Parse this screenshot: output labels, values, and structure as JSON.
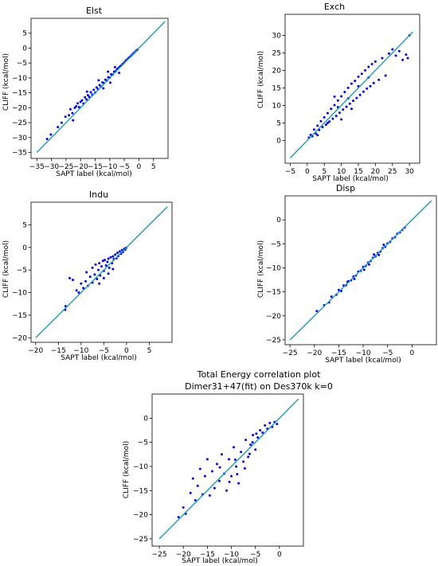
{
  "figure": {
    "point_color": "#0000ff",
    "line_color": "#1f9bb5"
  },
  "chart_data": [
    {
      "id": "elst",
      "type": "scatter",
      "title": "Elst",
      "xlabel": "SAPT label (kcal/mol)",
      "ylabel": "CLIFF (kcal/mol)",
      "xlim": [
        -37,
        10
      ],
      "ylim": [
        -37,
        10
      ],
      "xticks": [
        -35,
        -30,
        -25,
        -20,
        -15,
        -10,
        -5,
        0,
        5
      ],
      "yticks": [
        -35,
        -30,
        -25,
        -20,
        -15,
        -10,
        -5,
        0,
        5
      ],
      "xtick_labels": [
        "−35",
        "−30",
        "−25",
        "−20",
        "−15",
        "−10",
        "−5",
        "0",
        "5"
      ],
      "ytick_labels": [
        "−35",
        "−30",
        "−25",
        "−20",
        "−15",
        "−10",
        "−5",
        "0",
        "5"
      ],
      "grid": false,
      "reference_line": [
        [
          -35,
          -35
        ],
        [
          9,
          9
        ]
      ],
      "points": [
        [
          -31.5,
          -30.5
        ],
        [
          -30.2,
          -29.0
        ],
        [
          -27.8,
          -26.5
        ],
        [
          -26.5,
          -25.0
        ],
        [
          -25.2,
          -23.0
        ],
        [
          -24.0,
          -22.5
        ],
        [
          -23.5,
          -20.5
        ],
        [
          -22.8,
          -21.8
        ],
        [
          -22.0,
          -20.0
        ],
        [
          -21.5,
          -19.5
        ],
        [
          -21.0,
          -18.5
        ],
        [
          -20.5,
          -19.8
        ],
        [
          -20.0,
          -18.0
        ],
        [
          -19.5,
          -17.5
        ],
        [
          -19.0,
          -18.6
        ],
        [
          -18.5,
          -16.5
        ],
        [
          -18.0,
          -17.2
        ],
        [
          -17.5,
          -15.8
        ],
        [
          -17.0,
          -16.4
        ],
        [
          -16.5,
          -14.8
        ],
        [
          -16.0,
          -15.6
        ],
        [
          -15.5,
          -14.0
        ],
        [
          -15.0,
          -14.9
        ],
        [
          -14.5,
          -13.2
        ],
        [
          -14.0,
          -13.8
        ],
        [
          -13.5,
          -12.4
        ],
        [
          -13.0,
          -12.9
        ],
        [
          -12.5,
          -11.5
        ],
        [
          -12.0,
          -11.8
        ],
        [
          -11.5,
          -10.6
        ],
        [
          -11.0,
          -10.9
        ],
        [
          -10.5,
          -9.8
        ],
        [
          -10.0,
          -9.9
        ],
        [
          -9.5,
          -8.8
        ],
        [
          -9.0,
          -8.9
        ],
        [
          -8.5,
          -7.9
        ],
        [
          -8.0,
          -7.8
        ],
        [
          -7.5,
          -7.1
        ],
        [
          -7.0,
          -6.7
        ],
        [
          -6.5,
          -6.2
        ],
        [
          -6.0,
          -5.8
        ],
        [
          -5.5,
          -5.3
        ],
        [
          -5.0,
          -4.8
        ],
        [
          -4.5,
          -4.2
        ],
        [
          -4.0,
          -3.8
        ],
        [
          -3.5,
          -3.3
        ],
        [
          -3.0,
          -2.9
        ],
        [
          -2.5,
          -2.4
        ],
        [
          -2.0,
          -1.9
        ],
        [
          -1.5,
          -1.4
        ],
        [
          -1.0,
          -0.9
        ],
        [
          -0.5,
          -0.5
        ],
        [
          -13.8,
          -10.8
        ],
        [
          -12.2,
          -13.5
        ],
        [
          -9.8,
          -11.6
        ],
        [
          -8.2,
          -6.4
        ],
        [
          -6.8,
          -8.3
        ],
        [
          -17.8,
          -14.6
        ],
        [
          -22.6,
          -24.2
        ],
        [
          -10.6,
          -7.9
        ]
      ]
    },
    {
      "id": "exch",
      "type": "scatter",
      "title": "Exch",
      "xlabel": "SAPT label (kcal/mol)",
      "ylabel": "CLIFF (kcal/mol)",
      "xlim": [
        -6.5,
        33
      ],
      "ylim": [
        -6.5,
        36
      ],
      "xticks": [
        -5,
        0,
        5,
        10,
        15,
        20,
        25,
        30
      ],
      "yticks": [
        0,
        5,
        10,
        15,
        20,
        25,
        30
      ],
      "xtick_labels": [
        "−5",
        "0",
        "5",
        "10",
        "15",
        "20",
        "25",
        "30"
      ],
      "ytick_labels": [
        "0",
        "5",
        "10",
        "15",
        "20",
        "25",
        "30"
      ],
      "grid": false,
      "reference_line": [
        [
          -5,
          -5
        ],
        [
          31,
          31
        ]
      ],
      "points": [
        [
          0.5,
          0.8
        ],
        [
          1.0,
          1.6
        ],
        [
          1.5,
          1.2
        ],
        [
          2.0,
          3.1
        ],
        [
          2.5,
          2.0
        ],
        [
          3.0,
          4.2
        ],
        [
          3.5,
          3.0
        ],
        [
          4.0,
          5.5
        ],
        [
          4.5,
          3.8
        ],
        [
          5.0,
          6.6
        ],
        [
          5.5,
          4.5
        ],
        [
          6.0,
          7.8
        ],
        [
          6.5,
          5.4
        ],
        [
          7.0,
          9.0
        ],
        [
          7.5,
          6.2
        ],
        [
          8.0,
          10.1
        ],
        [
          8.5,
          7.0
        ],
        [
          9.0,
          11.4
        ],
        [
          9.5,
          7.9
        ],
        [
          10.0,
          12.6
        ],
        [
          10.5,
          8.8
        ],
        [
          11.0,
          13.8
        ],
        [
          11.5,
          9.6
        ],
        [
          12.0,
          15.0
        ],
        [
          12.5,
          10.5
        ],
        [
          13.0,
          16.2
        ],
        [
          13.5,
          11.3
        ],
        [
          14.0,
          17.0
        ],
        [
          14.5,
          12.1
        ],
        [
          15.0,
          18.2
        ],
        [
          15.5,
          13.0
        ],
        [
          16.0,
          19.0
        ],
        [
          16.5,
          13.9
        ],
        [
          17.0,
          20.0
        ],
        [
          17.5,
          14.8
        ],
        [
          18.0,
          21.0
        ],
        [
          18.5,
          15.5
        ],
        [
          19.0,
          21.8
        ],
        [
          19.5,
          16.4
        ],
        [
          20.0,
          22.5
        ],
        [
          21.0,
          17.3
        ],
        [
          22.0,
          23.5
        ],
        [
          23.0,
          18.5
        ],
        [
          24.0,
          24.8
        ],
        [
          25.0,
          26.0
        ],
        [
          26.0,
          24.2
        ],
        [
          27.0,
          25.5
        ],
        [
          28.0,
          23.0
        ],
        [
          29.0,
          24.5
        ],
        [
          30.0,
          30.0
        ],
        [
          29.5,
          23.5
        ],
        [
          3.0,
          1.5
        ],
        [
          6.0,
          5.0
        ],
        [
          9.0,
          9.5
        ],
        [
          12.0,
          12.0
        ],
        [
          15.0,
          15.5
        ],
        [
          18.0,
          18.0
        ],
        [
          10.0,
          6.0
        ],
        [
          8.0,
          12.5
        ],
        [
          13.0,
          9.0
        ]
      ]
    },
    {
      "id": "indu",
      "type": "scatter",
      "title": "Indu",
      "xlabel": "SAPT label (kcal/mol)",
      "ylabel": "CLIFF (kcal/mol)",
      "xlim": [
        -21,
        10
      ],
      "ylim": [
        -21,
        10
      ],
      "xticks": [
        -20,
        -15,
        -10,
        -5,
        0,
        5
      ],
      "yticks": [
        -20,
        -15,
        -10,
        -5,
        0,
        5
      ],
      "xtick_labels": [
        "−20",
        "−15",
        "−10",
        "−5",
        "0",
        "5"
      ],
      "ytick_labels": [
        "−20",
        "−15",
        "−10",
        "−5",
        "0",
        "5"
      ],
      "grid": false,
      "reference_line": [
        [
          -20,
          -20
        ],
        [
          9,
          9
        ]
      ],
      "points": [
        [
          -13.5,
          -13.8
        ],
        [
          -13.4,
          -13.0
        ],
        [
          -12.5,
          -6.8
        ],
        [
          -11.8,
          -7.2
        ],
        [
          -11.0,
          -9.5
        ],
        [
          -10.5,
          -10.0
        ],
        [
          -10.0,
          -8.0
        ],
        [
          -9.5,
          -9.0
        ],
        [
          -9.0,
          -7.5
        ],
        [
          -8.8,
          -5.5
        ],
        [
          -8.5,
          -8.5
        ],
        [
          -8.0,
          -6.5
        ],
        [
          -7.5,
          -7.8
        ],
        [
          -7.5,
          -4.5
        ],
        [
          -7.0,
          -6.0
        ],
        [
          -6.8,
          -3.8
        ],
        [
          -6.5,
          -7.0
        ],
        [
          -6.2,
          -5.0
        ],
        [
          -6.0,
          -3.5
        ],
        [
          -5.8,
          -6.2
        ],
        [
          -5.5,
          -4.2
        ],
        [
          -5.2,
          -3.0
        ],
        [
          -5.0,
          -5.2
        ],
        [
          -4.8,
          -2.8
        ],
        [
          -4.5,
          -4.0
        ],
        [
          -4.2,
          -3.2
        ],
        [
          -4.0,
          -2.5
        ],
        [
          -3.8,
          -4.5
        ],
        [
          -3.5,
          -2.2
        ],
        [
          -3.2,
          -3.5
        ],
        [
          -3.0,
          -2.0
        ],
        [
          -2.8,
          -2.6
        ],
        [
          -2.5,
          -1.6
        ],
        [
          -2.2,
          -2.4
        ],
        [
          -2.0,
          -1.2
        ],
        [
          -1.8,
          -1.9
        ],
        [
          -1.5,
          -0.9
        ],
        [
          -1.2,
          -1.4
        ],
        [
          -1.0,
          -0.6
        ],
        [
          -0.8,
          -1.0
        ],
        [
          -0.5,
          -0.3
        ],
        [
          -0.3,
          -0.5
        ],
        [
          -0.1,
          -0.1
        ],
        [
          -4.0,
          -5.8
        ],
        [
          -5.0,
          -6.8
        ],
        [
          -6.0,
          -8.0
        ],
        [
          -3.0,
          -4.8
        ]
      ]
    },
    {
      "id": "disp",
      "type": "scatter",
      "title": "Disp",
      "xlabel": "SAPT label (kcal/mol)",
      "ylabel": "CLIFF (kcal/mol)",
      "xlim": [
        -26,
        5
      ],
      "ylim": [
        -26,
        5
      ],
      "xticks": [
        -25,
        -20,
        -15,
        -10,
        -5,
        0
      ],
      "yticks": [
        -25,
        -20,
        -15,
        -10,
        -5,
        0
      ],
      "xtick_labels": [
        "−25",
        "−20",
        "−15",
        "−10",
        "−5",
        "0"
      ],
      "ytick_labels": [
        "−25",
        "−20",
        "−15",
        "−10",
        "−5",
        "0"
      ],
      "grid": false,
      "reference_line": [
        [
          -25,
          -25
        ],
        [
          4,
          4
        ]
      ],
      "points": [
        [
          -19.5,
          -19.0
        ],
        [
          -18.0,
          -17.8
        ],
        [
          -17.0,
          -17.2
        ],
        [
          -16.5,
          -16.0
        ],
        [
          -15.5,
          -15.6
        ],
        [
          -15.0,
          -14.6
        ],
        [
          -14.5,
          -14.8
        ],
        [
          -14.0,
          -13.7
        ],
        [
          -13.5,
          -13.6
        ],
        [
          -13.0,
          -12.8
        ],
        [
          -12.5,
          -12.6
        ],
        [
          -12.0,
          -11.8
        ],
        [
          -11.5,
          -11.6
        ],
        [
          -11.0,
          -10.8
        ],
        [
          -10.5,
          -10.6
        ],
        [
          -10.0,
          -9.8
        ],
        [
          -9.5,
          -9.6
        ],
        [
          -9.0,
          -8.9
        ],
        [
          -8.5,
          -8.6
        ],
        [
          -8.0,
          -7.9
        ],
        [
          -7.5,
          -7.6
        ],
        [
          -7.0,
          -6.9
        ],
        [
          -6.5,
          -6.6
        ],
        [
          -6.0,
          -5.9
        ],
        [
          -5.5,
          -5.6
        ],
        [
          -5.0,
          -4.9
        ],
        [
          -4.5,
          -4.6
        ],
        [
          -4.0,
          -3.9
        ],
        [
          -3.5,
          -3.6
        ],
        [
          -3.0,
          -2.9
        ],
        [
          -2.5,
          -2.6
        ],
        [
          -2.0,
          -2.1
        ],
        [
          -1.5,
          -1.6
        ],
        [
          -9.8,
          -10.4
        ],
        [
          -7.8,
          -7.2
        ],
        [
          -11.8,
          -12.3
        ],
        [
          -5.8,
          -5.2
        ],
        [
          -13.2,
          -12.9
        ],
        [
          -8.8,
          -9.3
        ],
        [
          -6.8,
          -7.3
        ]
      ]
    },
    {
      "id": "total",
      "type": "scatter",
      "title": "Total Energy correlation plot",
      "subtitle": "Dimer31+47(fit) on Des370k k=0",
      "xlabel": "SAPT label (kcal/mol)",
      "ylabel": "CLIFF (kcal/mol)",
      "xlim": [
        -26.5,
        5
      ],
      "ylim": [
        -26.5,
        5
      ],
      "xticks": [
        -25,
        -20,
        -15,
        -10,
        -5,
        0
      ],
      "yticks": [
        -25,
        -20,
        -15,
        -10,
        -5,
        0
      ],
      "xtick_labels": [
        "−25",
        "−20",
        "−15",
        "−10",
        "−5",
        "0"
      ],
      "ytick_labels": [
        "−25",
        "−20",
        "−15",
        "−10",
        "−5",
        "0"
      ],
      "grid": false,
      "reference_line": [
        [
          -25,
          -25
        ],
        [
          4,
          4
        ]
      ],
      "points": [
        [
          -21.0,
          -20.5
        ],
        [
          -20.0,
          -18.5
        ],
        [
          -19.5,
          -19.8
        ],
        [
          -18.5,
          -15.5
        ],
        [
          -18.0,
          -12.5
        ],
        [
          -17.5,
          -17.0
        ],
        [
          -17.0,
          -14.0
        ],
        [
          -16.5,
          -10.5
        ],
        [
          -16.0,
          -15.8
        ],
        [
          -15.5,
          -12.0
        ],
        [
          -15.0,
          -8.5
        ],
        [
          -14.5,
          -16.0
        ],
        [
          -14.0,
          -11.0
        ],
        [
          -13.5,
          -14.5
        ],
        [
          -13.0,
          -9.5
        ],
        [
          -12.5,
          -13.0
        ],
        [
          -12.0,
          -7.5
        ],
        [
          -11.5,
          -11.5
        ],
        [
          -11.0,
          -15.0
        ],
        [
          -10.5,
          -8.5
        ],
        [
          -10.0,
          -12.0
        ],
        [
          -9.5,
          -6.0
        ],
        [
          -9.0,
          -10.0
        ],
        [
          -8.5,
          -13.5
        ],
        [
          -8.0,
          -7.0
        ],
        [
          -7.5,
          -9.0
        ],
        [
          -7.0,
          -4.5
        ],
        [
          -6.5,
          -8.0
        ],
        [
          -6.0,
          -5.5
        ],
        [
          -5.5,
          -3.5
        ],
        [
          -5.0,
          -6.5
        ],
        [
          -4.5,
          -4.0
        ],
        [
          -4.0,
          -2.5
        ],
        [
          -3.5,
          -3.0
        ],
        [
          -3.0,
          -1.5
        ],
        [
          -2.5,
          -2.2
        ],
        [
          -2.0,
          -1.0
        ],
        [
          -1.5,
          -1.8
        ],
        [
          -1.0,
          -0.8
        ],
        [
          -0.5,
          -1.2
        ],
        [
          -8.8,
          -11.6
        ],
        [
          -7.2,
          -10.4
        ],
        [
          -9.2,
          -8.6
        ],
        [
          -6.2,
          -7.4
        ],
        [
          -5.6,
          -5.0
        ],
        [
          -4.8,
          -3.2
        ],
        [
          -10.4,
          -13.2
        ],
        [
          -12.4,
          -10.2
        ]
      ]
    }
  ]
}
